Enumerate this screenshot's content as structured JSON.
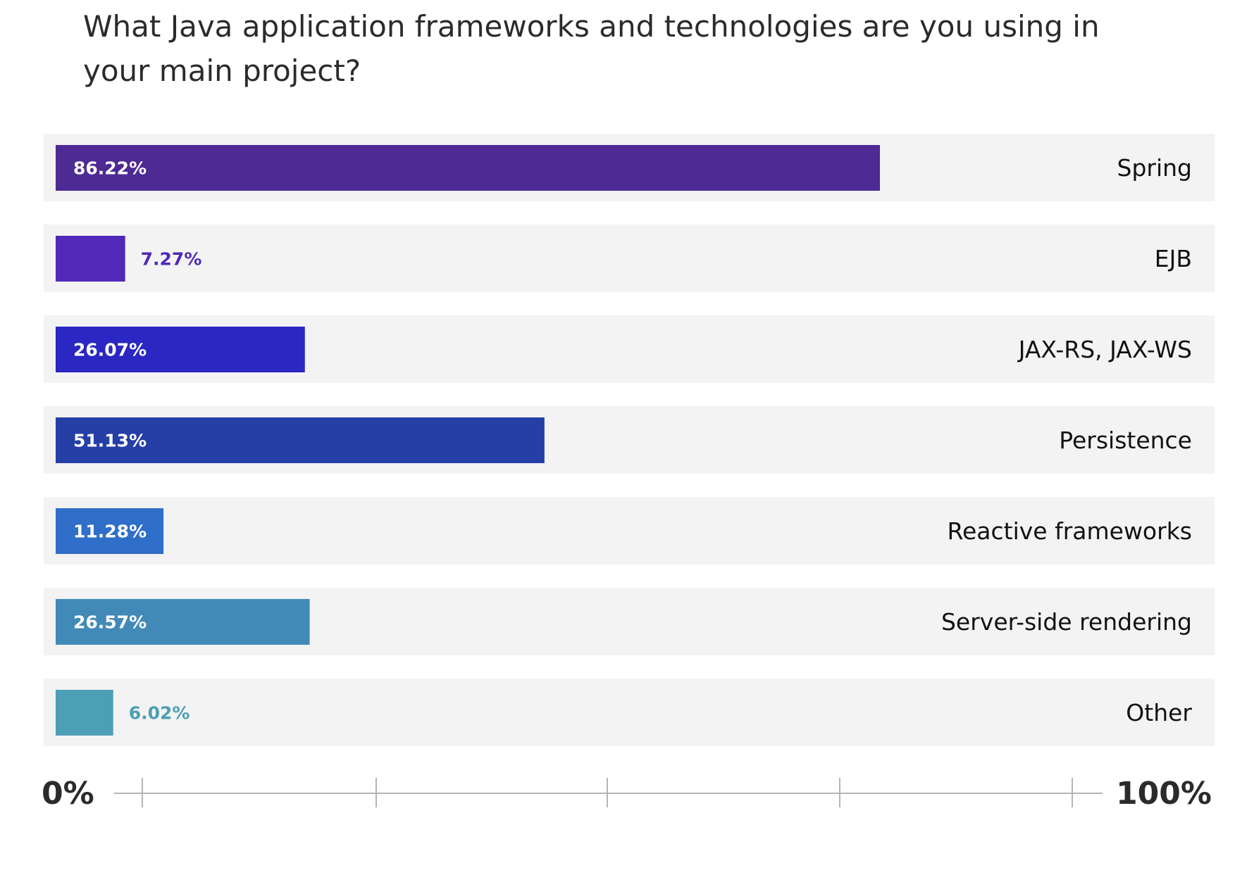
{
  "chart_data": {
    "type": "bar",
    "orientation": "horizontal",
    "title": "What Java application frameworks and technologies are you using in your main project?",
    "categories": [
      "Spring",
      "EJB",
      "JAX-RS, JAX-WS",
      "Persistence",
      "Reactive frameworks",
      "Server-side rendering",
      "Other"
    ],
    "values": [
      86.22,
      7.27,
      26.07,
      51.13,
      11.28,
      26.57,
      6.02
    ],
    "value_labels": [
      "86.22%",
      "7.27%",
      "26.07%",
      "51.13%",
      "11.28%",
      "26.57%",
      "6.02%"
    ],
    "colors": [
      "#4e2a94",
      "#5128b8",
      "#2a27c2",
      "#263fa6",
      "#2f6ec9",
      "#418ab8",
      "#4c9fb5"
    ],
    "xlim": [
      0,
      100
    ],
    "axis_min_label": "0%",
    "axis_max_label": "100%",
    "xlabel": "",
    "ylabel": "",
    "grid": false,
    "legend": "none"
  }
}
